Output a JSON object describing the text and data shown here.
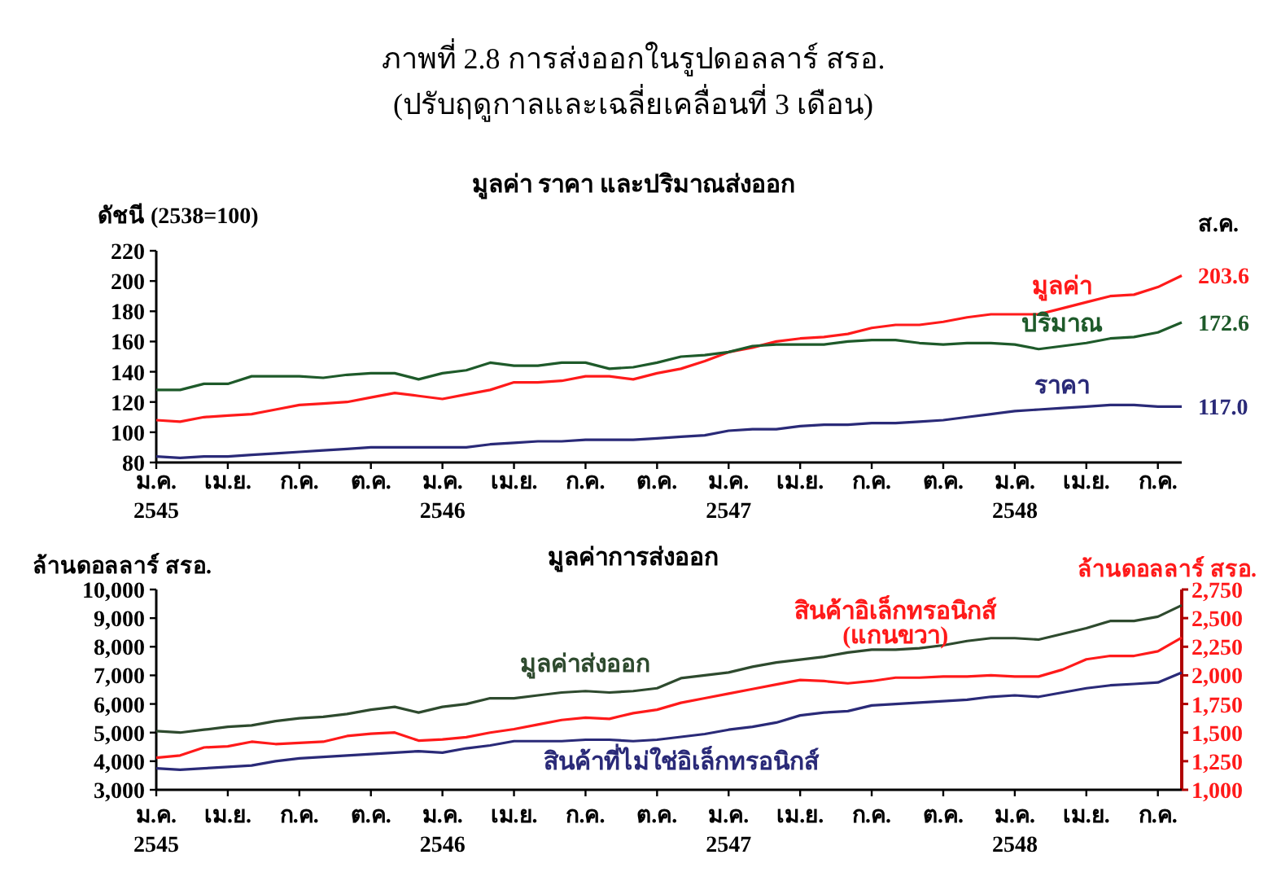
{
  "chart_data": [
    {
      "type": "line",
      "title": "ภาพที่ 2.8 การส่งออกในรูปดอลลาร์ สรอ.\n(ปรับฤดูกาลและเฉลี่ยเคลื่อนที่ 3 เดือน)",
      "subtitle": "มูลค่า ราคา และปริมาณส่งออก",
      "ylabel": "ดัชนี (2538=100)",
      "annotations": [
        "ส.ค."
      ],
      "categories": [
        "ม.ค.\n2545",
        null,
        null,
        "เม.ย.",
        null,
        null,
        "ก.ค.",
        null,
        null,
        "ต.ค.",
        null,
        null,
        "ม.ค.\n2546",
        null,
        null,
        "เม.ย.",
        null,
        null,
        "ก.ค.",
        null,
        null,
        "ต.ค.",
        null,
        null,
        "ม.ค.\n2547",
        null,
        null,
        "เม.ย.",
        null,
        null,
        "ก.ค.",
        null,
        null,
        "ต.ค.",
        null,
        null,
        "ม.ค.\n2548",
        null,
        null,
        "เม.ย.",
        null,
        null,
        "ก.ค.",
        null
      ],
      "ylim": [
        80,
        220
      ],
      "yticks": [
        80,
        100,
        120,
        140,
        160,
        180,
        200,
        220
      ],
      "legend": false,
      "series": [
        {
          "name": "มูลค่า",
          "color": "#ff1a1a",
          "values": [
            108,
            107,
            110,
            111,
            112,
            115,
            118,
            119,
            120,
            123,
            126,
            124,
            122,
            125,
            128,
            133,
            133,
            134,
            137,
            137,
            135,
            139,
            142,
            147,
            153,
            156,
            160,
            162,
            163,
            165,
            169,
            171,
            171,
            173,
            176,
            178,
            178,
            178,
            182,
            186,
            190,
            191,
            196,
            203.6
          ],
          "value_labels": [
            null,
            null,
            null,
            null,
            null,
            null,
            null,
            null,
            null,
            null,
            null,
            null,
            null,
            null,
            null,
            null,
            null,
            null,
            null,
            null,
            null,
            null,
            null,
            null,
            null,
            null,
            null,
            null,
            null,
            null,
            null,
            null,
            null,
            null,
            null,
            null,
            null,
            null,
            null,
            null,
            null,
            null,
            null,
            "203.6"
          ]
        },
        {
          "name": "ปริมาณ",
          "color": "#1e5a2a",
          "values": [
            128,
            128,
            132,
            132,
            137,
            137,
            137,
            136,
            138,
            139,
            139,
            135,
            139,
            141,
            146,
            144,
            144,
            146,
            146,
            142,
            143,
            146,
            150,
            151,
            153,
            157,
            158,
            158,
            158,
            160,
            161,
            161,
            159,
            158,
            159,
            159,
            158,
            155,
            157,
            159,
            162,
            163,
            166,
            172.6
          ],
          "value_labels": [
            null,
            null,
            null,
            null,
            null,
            null,
            null,
            null,
            null,
            null,
            null,
            null,
            null,
            null,
            null,
            null,
            null,
            null,
            null,
            null,
            null,
            null,
            null,
            null,
            null,
            null,
            null,
            null,
            null,
            null,
            null,
            null,
            null,
            null,
            null,
            null,
            null,
            null,
            null,
            null,
            null,
            null,
            null,
            "172.6"
          ]
        },
        {
          "name": "ราคา",
          "color": "#2a2a78",
          "values": [
            84,
            83,
            84,
            84,
            85,
            86,
            87,
            88,
            89,
            90,
            90,
            90,
            90,
            90,
            92,
            93,
            94,
            94,
            95,
            95,
            95,
            96,
            97,
            98,
            101,
            102,
            102,
            104,
            105,
            105,
            106,
            106,
            107,
            108,
            110,
            112,
            114,
            115,
            116,
            117,
            118,
            118,
            117,
            117.0
          ],
          "value_labels": [
            null,
            null,
            null,
            null,
            null,
            null,
            null,
            null,
            null,
            null,
            null,
            null,
            null,
            null,
            null,
            null,
            null,
            null,
            null,
            null,
            null,
            null,
            null,
            null,
            null,
            null,
            null,
            null,
            null,
            null,
            null,
            null,
            null,
            null,
            null,
            null,
            null,
            null,
            null,
            null,
            null,
            null,
            null,
            "117.0"
          ]
        }
      ]
    },
    {
      "type": "line",
      "title": "มูลค่าการส่งออก",
      "ylabel": "ล้านดอลลาร์ สรอ.",
      "y2label": "ล้านดอลลาร์ สรอ.",
      "categories": [
        "ม.ค.\n2545",
        null,
        null,
        "เม.ย.",
        null,
        null,
        "ก.ค.",
        null,
        null,
        "ต.ค.",
        null,
        null,
        "ม.ค.\n2546",
        null,
        null,
        "เม.ย.",
        null,
        null,
        "ก.ค.",
        null,
        null,
        "ต.ค.",
        null,
        null,
        "ม.ค.\n2547",
        null,
        null,
        "เม.ย.",
        null,
        null,
        "ก.ค.",
        null,
        null,
        "ต.ค.",
        null,
        null,
        "ม.ค.\n2548",
        null,
        null,
        "เม.ย.",
        null,
        null,
        "ก.ค.",
        null
      ],
      "ylim": [
        3000,
        10000
      ],
      "yticks": [
        {
          "value": 3000,
          "label": "3,000"
        },
        {
          "value": 4000,
          "label": "4,000"
        },
        {
          "value": 5000,
          "label": "5,000"
        },
        {
          "value": 6000,
          "label": "6,000"
        },
        {
          "value": 7000,
          "label": "7,000"
        },
        {
          "value": 8000,
          "label": "8,000"
        },
        {
          "value": 9000,
          "label": "9,000"
        },
        {
          "value": 10000,
          "label": "10,000"
        }
      ],
      "y2lim": [
        1000,
        2750
      ],
      "y2ticks": [
        {
          "value": 1000,
          "label": "1,000"
        },
        {
          "value": 1250,
          "label": "1,250"
        },
        {
          "value": 1500,
          "label": "1,500"
        },
        {
          "value": 1750,
          "label": "1,750"
        },
        {
          "value": 2000,
          "label": "2,000"
        },
        {
          "value": 2250,
          "label": "2,250"
        },
        {
          "value": 2500,
          "label": "2,500"
        },
        {
          "value": 2750,
          "label": "2,750"
        }
      ],
      "legend": false,
      "series": [
        {
          "name": "มูลค่าส่งออก",
          "color": "#2e4a2e",
          "values": [
            5050,
            5000,
            5100,
            5200,
            5250,
            5400,
            5500,
            5550,
            5650,
            5800,
            5900,
            5700,
            5900,
            6000,
            6200,
            6200,
            6300,
            6400,
            6450,
            6400,
            6450,
            6550,
            6900,
            7000,
            7100,
            7300,
            7450,
            7550,
            7650,
            7800,
            7900,
            7900,
            7950,
            8050,
            8200,
            8300,
            8300,
            8250,
            8450,
            8650,
            8900,
            8900,
            9050,
            9450
          ]
        },
        {
          "name": "สินค้าอิเล็กทรอนิกส์\n(แกนขวา)",
          "color": "#ff1a1a",
          "axis": "y2",
          "values": [
            1280,
            1300,
            1370,
            1380,
            1420,
            1400,
            1410,
            1420,
            1470,
            1490,
            1500,
            1430,
            1440,
            1460,
            1500,
            1530,
            1570,
            1610,
            1630,
            1620,
            1670,
            1700,
            1760,
            1800,
            1840,
            1880,
            1920,
            1960,
            1950,
            1930,
            1950,
            1980,
            1980,
            1990,
            1990,
            2000,
            1990,
            1990,
            2050,
            2140,
            2170,
            2170,
            2210,
            2330
          ]
        },
        {
          "name": "สินค้าที่ไม่ใช่อิเล็กทรอนิกส์",
          "color": "#2a2a78",
          "values": [
            3750,
            3700,
            3750,
            3800,
            3850,
            4000,
            4100,
            4150,
            4200,
            4250,
            4300,
            4350,
            4300,
            4450,
            4550,
            4700,
            4700,
            4700,
            4750,
            4750,
            4700,
            4750,
            4850,
            4950,
            5100,
            5200,
            5350,
            5600,
            5700,
            5750,
            5950,
            6000,
            6050,
            6100,
            6150,
            6250,
            6300,
            6250,
            6400,
            6550,
            6650,
            6700,
            6750,
            7100
          ]
        }
      ]
    }
  ]
}
